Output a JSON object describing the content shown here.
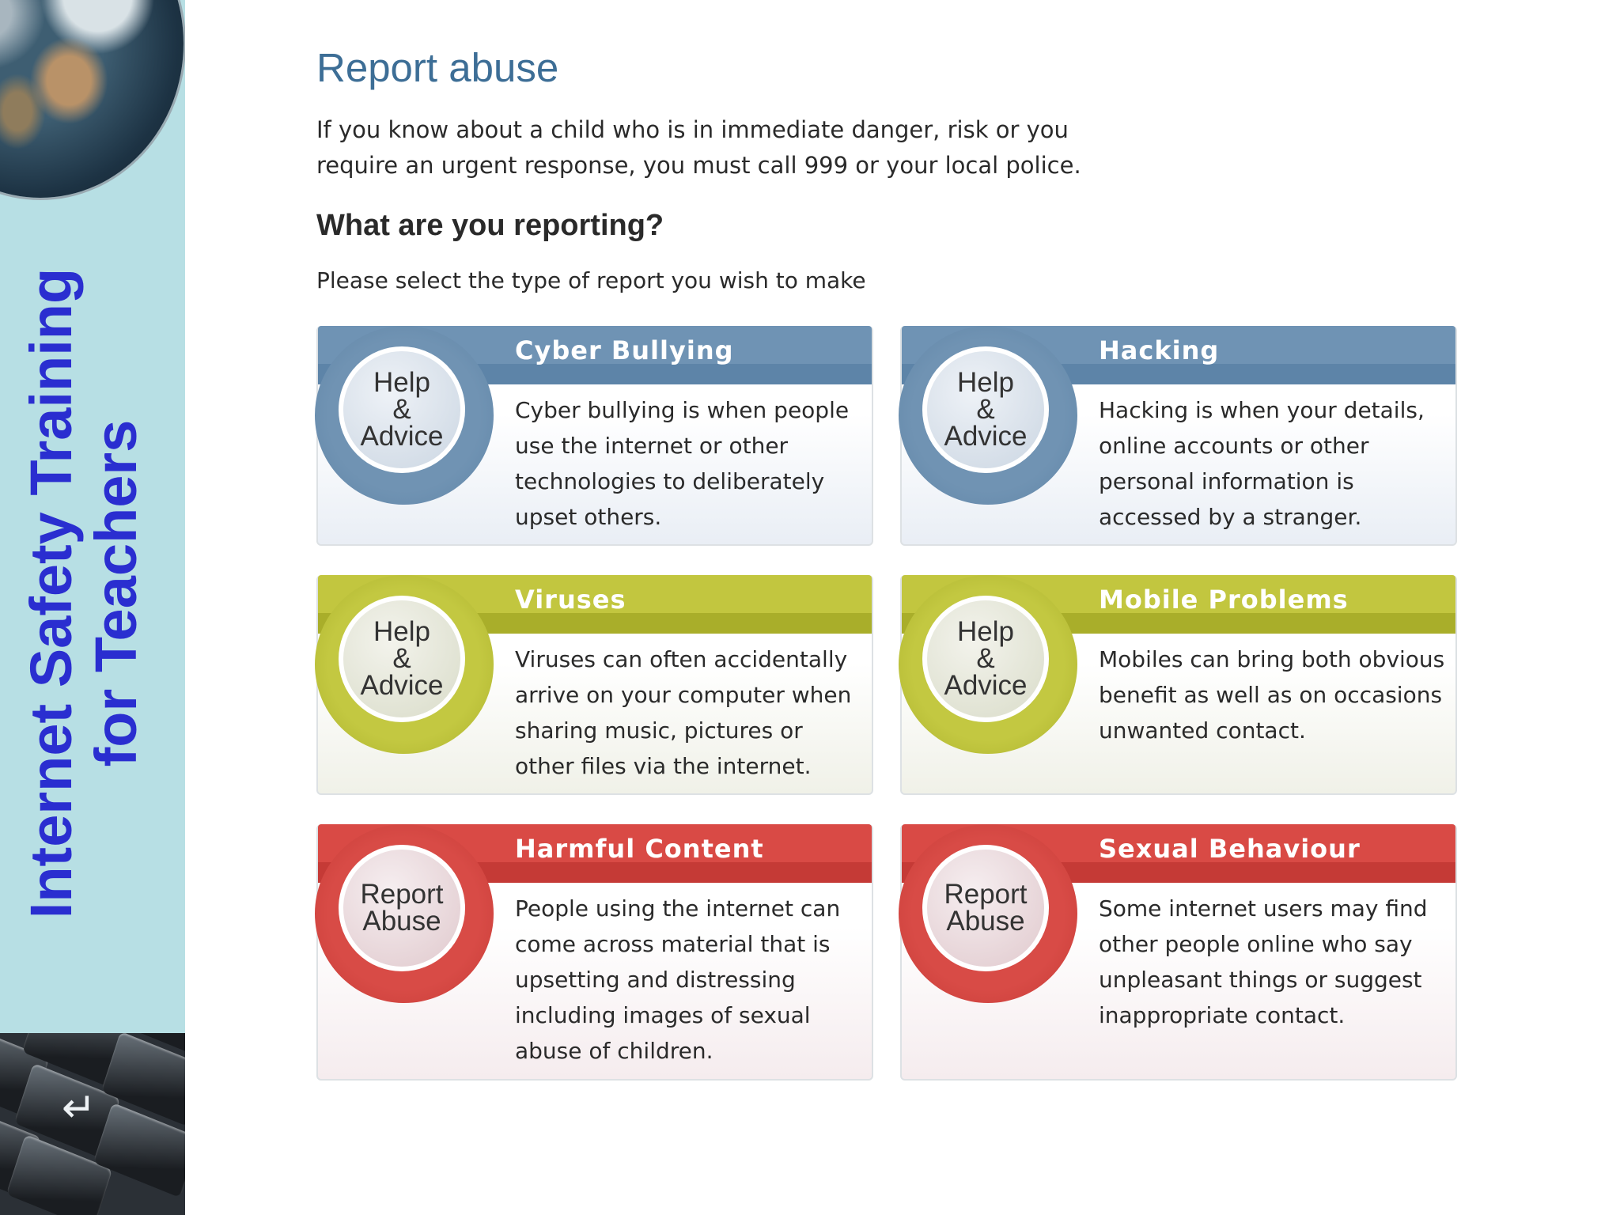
{
  "slide": {
    "title_line1": "Internet Safety Training",
    "title_line2": "for Teachers"
  },
  "page": {
    "title": "Report abuse",
    "intro": "If you know about a child who is in immediate danger, risk or you require an urgent response, you must call 999 or your local police.",
    "question": "What are you reporting?",
    "instruction": "Please select the type of report you wish to make"
  },
  "cards": [
    {
      "title": "Cyber Bullying",
      "badge_lines": [
        "Help",
        "&",
        "Advice"
      ],
      "description": "Cyber bullying is when people use the internet or other technologies to deliberately upset others.",
      "color": "#6f93b4"
    },
    {
      "title": "Hacking",
      "badge_lines": [
        "Help",
        "&",
        "Advice"
      ],
      "description": "Hacking is when your details, online accounts or other personal information is accessed by a stranger.",
      "color": "#6f93b4"
    },
    {
      "title": "Viruses",
      "badge_lines": [
        "Help",
        "&",
        "Advice"
      ],
      "description": "Viruses can often accidentally arrive on your computer when sharing music, pictures or other files via the internet.",
      "color": "#c2c63f"
    },
    {
      "title": "Mobile Problems",
      "badge_lines": [
        "Help",
        "&",
        "Advice"
      ],
      "description": "Mobiles can bring both obvious benefit as well as on occasions unwanted contact.",
      "color": "#c2c63f"
    },
    {
      "title": "Harmful Content",
      "badge_lines": [
        "Report",
        "Abuse"
      ],
      "description": "People using the internet can come across material that is upsetting and distressing including images of sexual abuse of children.",
      "color": "#d94a45"
    },
    {
      "title": "Sexual Behaviour",
      "badge_lines": [
        "Report",
        "Abuse"
      ],
      "description": "Some internet users may find other people online who say unpleasant things or suggest inappropriate contact.",
      "color": "#d94a45"
    }
  ],
  "icons": [
    "globe-image",
    "keyboard-image",
    "return-key-icon"
  ]
}
